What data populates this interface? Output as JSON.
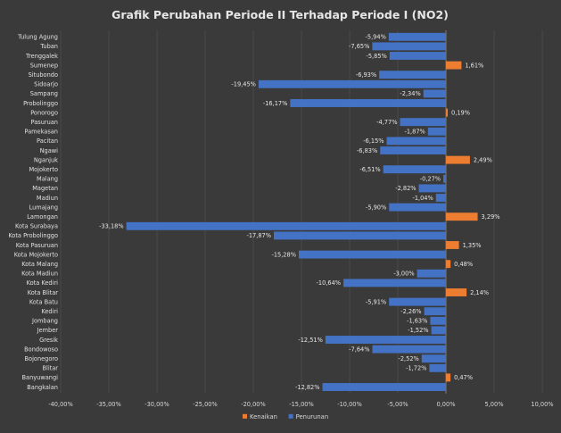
{
  "chart_data": {
    "type": "bar",
    "orientation": "horizontal",
    "title": "Grafik Perubahan Periode II Terhadap Periode I (NO2)",
    "categories": [
      "Tulung Agung",
      "Tuban",
      "Trenggalek",
      "Sumenep",
      "Situbondo",
      "Sidoarjo",
      "Sampang",
      "Probolinggo",
      "Ponorogo",
      "Pasuruan",
      "Pamekasan",
      "Pacitan",
      "Ngawi",
      "Nganjuk",
      "Mojokerto",
      "Malang",
      "Magetan",
      "Madiun",
      "Lumajang",
      "Lamongan",
      "Kota Surabaya",
      "Kota Probolinggo",
      "Kota Pasuruan",
      "Kota Mojokerto",
      "Kota Malang",
      "Kota Madiun",
      "Kota Kediri",
      "Kota Blitar",
      "Kota Batu",
      "Kediri",
      "Jombang",
      "Jember",
      "Gresik",
      "Bondowoso",
      "Bojonegoro",
      "Blitar",
      "Banyuwangi",
      "Bangkalan"
    ],
    "values": [
      -5.94,
      -7.65,
      -5.85,
      1.61,
      -6.93,
      -19.45,
      -2.34,
      -16.17,
      0.19,
      -4.77,
      -1.87,
      -6.15,
      -6.83,
      2.49,
      -6.51,
      -0.27,
      -2.82,
      -1.04,
      -5.9,
      3.29,
      -33.18,
      -17.87,
      1.35,
      -15.28,
      0.48,
      -3.0,
      -10.64,
      2.14,
      -5.91,
      -2.26,
      -1.63,
      -1.52,
      -12.51,
      -7.64,
      -2.52,
      -1.72,
      0.47,
      -12.82
    ],
    "value_labels": [
      "-5,94%",
      "-7,65%",
      "-5,85%",
      "1,61%",
      "-6,93%",
      "-19,45%",
      "-2,34%",
      "-16,17%",
      "0,19%",
      "-4,77%",
      "-1,87%",
      "-6,15%",
      "-6,83%",
      "2,49%",
      "-6,51%",
      "-0,27%",
      "-2,82%",
      "-1,04%",
      "-5,90%",
      "3,29%",
      "-33,18%",
      "-17,87%",
      "1,35%",
      "-15,28%",
      "0,48%",
      "-3,00%",
      "-10,64%",
      "2,14%",
      "-5,91%",
      "-2,26%",
      "-1,63%",
      "-1,52%",
      "-12,51%",
      "-7,64%",
      "-2,52%",
      "-1,72%",
      "0,47%",
      "-12,82%"
    ],
    "xlim": [
      -40,
      10
    ],
    "x_ticks": [
      -40,
      -35,
      -30,
      -25,
      -20,
      -15,
      -10,
      -5,
      0,
      5,
      10
    ],
    "x_tick_labels": [
      "-40,00%",
      "-35,00%",
      "-30,00%",
      "-25,00%",
      "-20,00%",
      "-15,00%",
      "-10,00%",
      "-5,00%",
      "0,00%",
      "5,00%",
      "10,00%"
    ],
    "grid": true,
    "legend": {
      "placement": "bottom",
      "items": [
        {
          "label": "Kenaikan",
          "color": "#ed7d31"
        },
        {
          "label": "Penurunan",
          "color": "#4472c4"
        }
      ]
    },
    "colors": {
      "increase": "#ed7d31",
      "decrease": "#4472c4"
    }
  }
}
